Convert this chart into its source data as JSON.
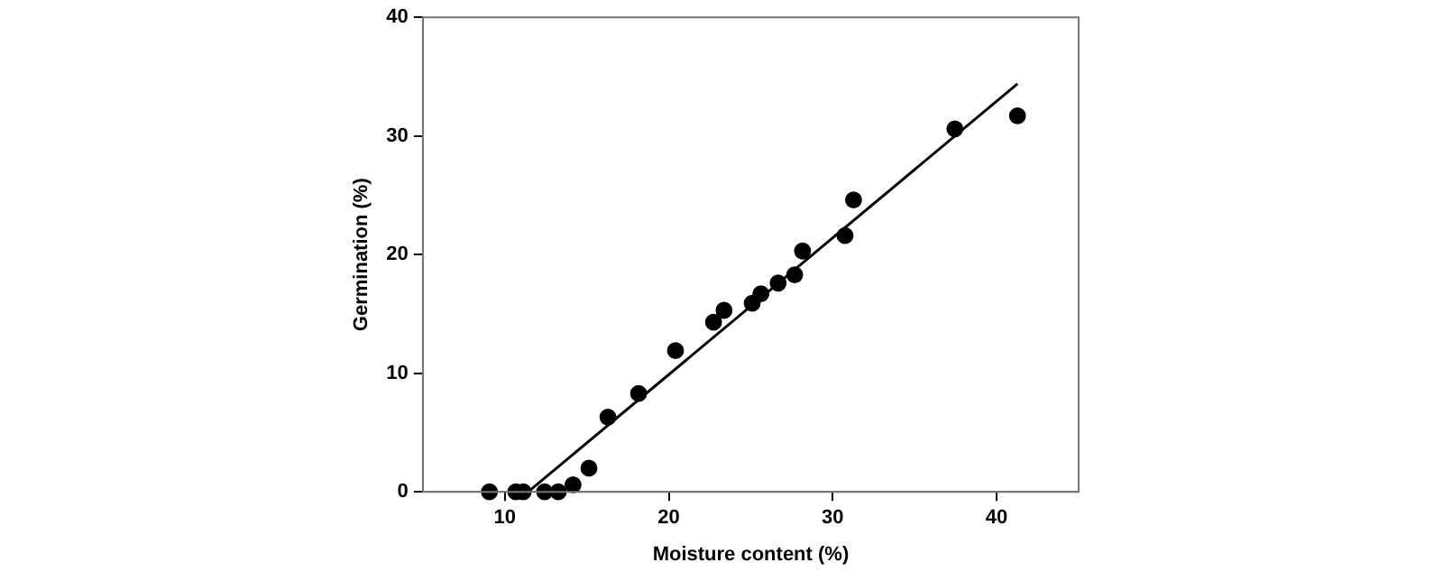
{
  "chart_data": {
    "type": "scatter",
    "xlabel": "Moisture content (%)",
    "ylabel": "Germination (%)",
    "xlim": [
      5,
      45
    ],
    "xticks": [
      10,
      20,
      30,
      40
    ],
    "ylim": [
      0,
      40
    ],
    "yticks": [
      0,
      10,
      20,
      30,
      40
    ],
    "grid": false,
    "legend": false,
    "marker": "circle",
    "series": [
      {
        "type": "scatter",
        "color": "#000000",
        "x": [
          9.06,
          10.67,
          11.12,
          12.43,
          13.26,
          14.16,
          15.13,
          16.29,
          18.16,
          20.41,
          22.73,
          23.37,
          25.09,
          25.62,
          26.67,
          27.68,
          28.16,
          30.75,
          31.27,
          37.45,
          41.27
        ],
        "values": [
          0,
          0,
          0,
          0,
          0,
          0.6,
          2.0,
          6.3,
          8.3,
          11.9,
          14.3,
          15.3,
          15.9,
          16.7,
          17.6,
          18.3,
          20.3,
          21.6,
          24.6,
          30.6,
          31.7
        ]
      },
      {
        "type": "line",
        "color": "#000000",
        "x": [
          11.42,
          41.27
        ],
        "values": [
          0,
          34.4
        ],
        "marker": "none",
        "line_style": "solid"
      }
    ]
  }
}
